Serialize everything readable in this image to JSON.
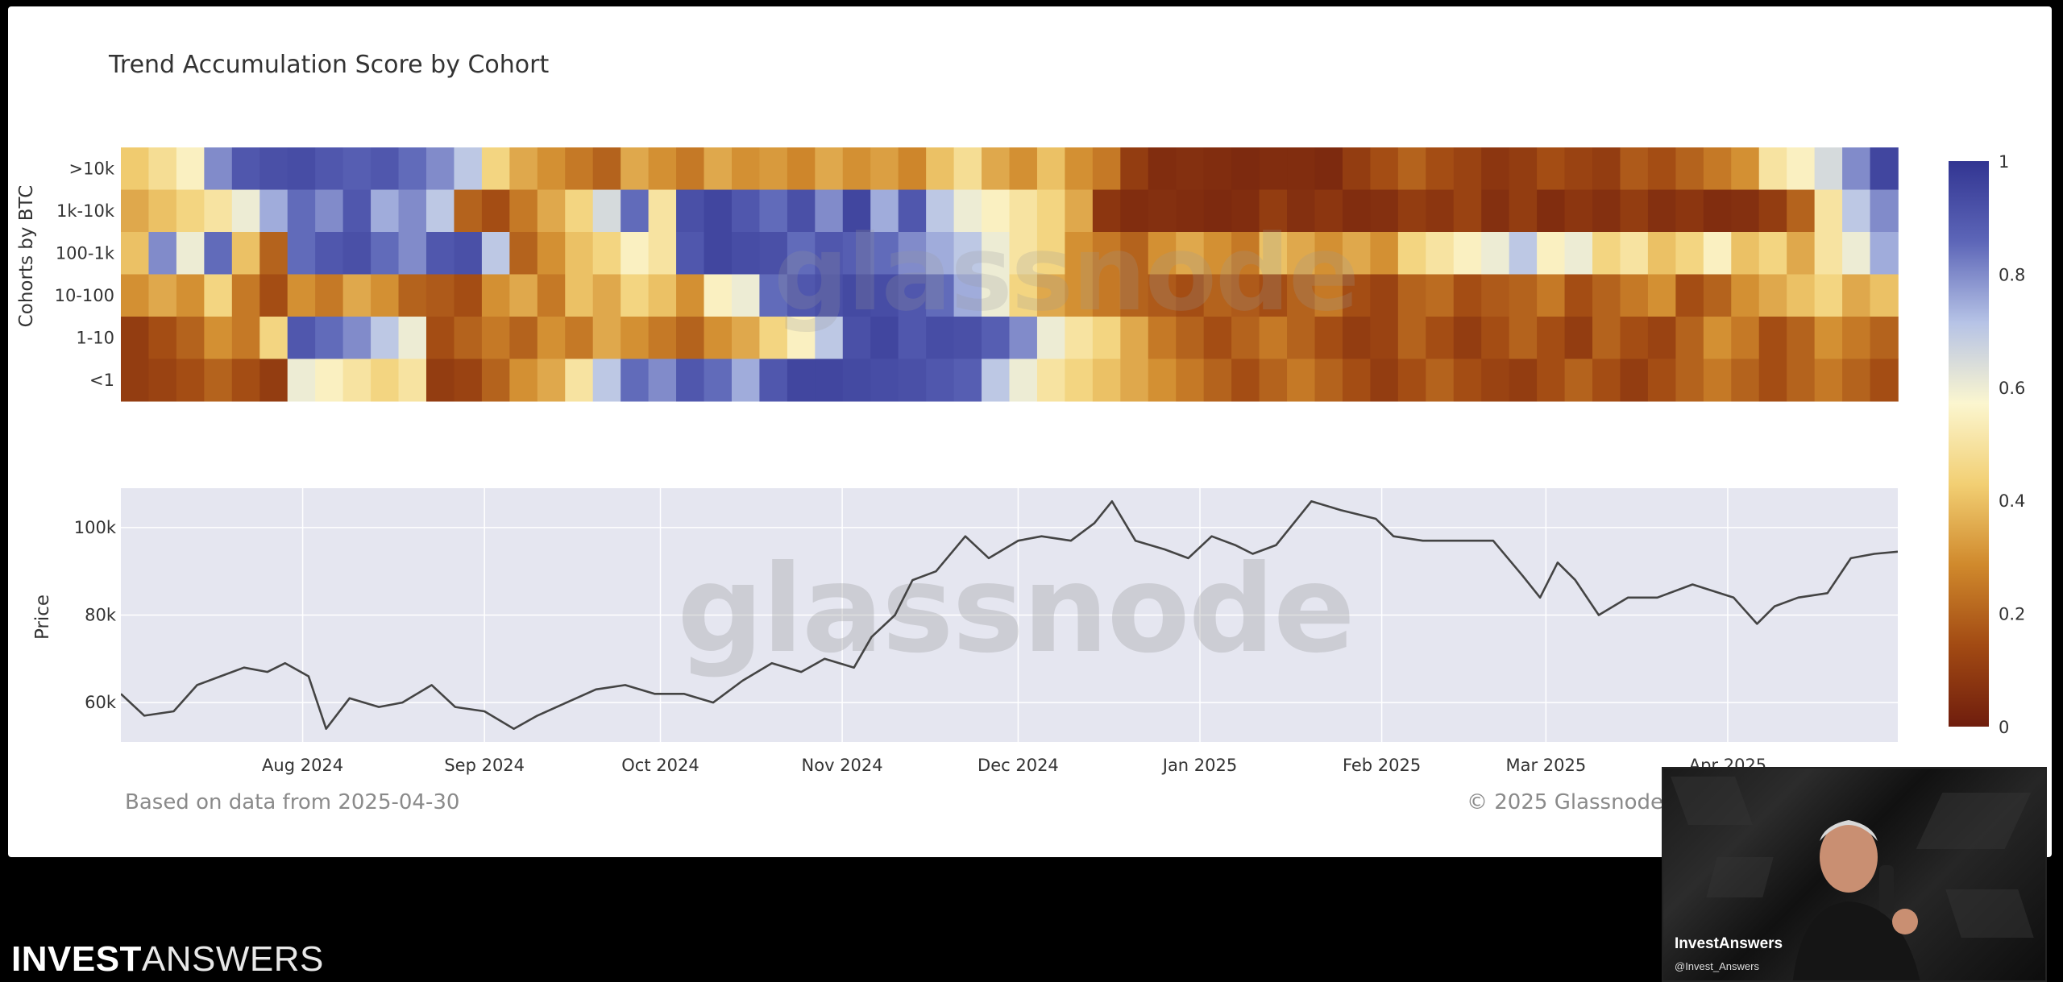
{
  "chart_data": [
    {
      "type": "heatmap",
      "title": "Trend Accumulation Score by Cohort",
      "ylabel": "Cohorts by BTC",
      "rows": [
        ">10k",
        "1k-10k",
        "100-1k",
        "10-100",
        "1-10",
        "<1"
      ],
      "x_range": [
        "2024-07-01",
        "2025-04-30"
      ],
      "colorbar": {
        "min": 0,
        "max": 1,
        "ticks": [
          0,
          0.2,
          0.4,
          0.6,
          0.8,
          1
        ],
        "colors": [
          "#6f1d0d",
          "#a24a13",
          "#d0892c",
          "#f2cf73",
          "#fbf6cf",
          "#b6c3e6",
          "#5d66b8",
          "#323592"
        ]
      },
      "values": [
        [
          0.42,
          0.48,
          0.55,
          0.8,
          0.9,
          0.92,
          0.93,
          0.9,
          0.88,
          0.9,
          0.85,
          0.8,
          0.7,
          0.45,
          0.35,
          0.3,
          0.25,
          0.2,
          0.35,
          0.3,
          0.25,
          0.35,
          0.3,
          0.32,
          0.28,
          0.35,
          0.3,
          0.33,
          0.28,
          0.4,
          0.48,
          0.35,
          0.3,
          0.4,
          0.3,
          0.25,
          0.1,
          0.05,
          0.06,
          0.05,
          0.04,
          0.05,
          0.05,
          0.04,
          0.1,
          0.15,
          0.2,
          0.15,
          0.12,
          0.08,
          0.1,
          0.15,
          0.12,
          0.1,
          0.18,
          0.15,
          0.2,
          0.25,
          0.3,
          0.5,
          0.55,
          0.65,
          0.8,
          0.95
        ],
        [
          0.35,
          0.4,
          0.45,
          0.5,
          0.6,
          0.75,
          0.85,
          0.8,
          0.9,
          0.75,
          0.8,
          0.7,
          0.2,
          0.15,
          0.25,
          0.35,
          0.45,
          0.65,
          0.85,
          0.5,
          0.92,
          0.95,
          0.9,
          0.85,
          0.92,
          0.8,
          0.95,
          0.75,
          0.9,
          0.7,
          0.6,
          0.55,
          0.5,
          0.45,
          0.35,
          0.08,
          0.05,
          0.06,
          0.05,
          0.04,
          0.05,
          0.1,
          0.06,
          0.08,
          0.05,
          0.06,
          0.1,
          0.08,
          0.12,
          0.06,
          0.1,
          0.05,
          0.08,
          0.06,
          0.1,
          0.06,
          0.08,
          0.05,
          0.06,
          0.1,
          0.2,
          0.5,
          0.7,
          0.8
        ],
        [
          0.4,
          0.8,
          0.6,
          0.85,
          0.4,
          0.2,
          0.85,
          0.9,
          0.92,
          0.85,
          0.8,
          0.9,
          0.92,
          0.7,
          0.2,
          0.3,
          0.4,
          0.45,
          0.55,
          0.5,
          0.9,
          0.95,
          0.93,
          0.92,
          0.85,
          0.9,
          0.88,
          0.85,
          0.8,
          0.75,
          0.7,
          0.6,
          0.5,
          0.45,
          0.3,
          0.25,
          0.2,
          0.3,
          0.35,
          0.3,
          0.25,
          0.4,
          0.35,
          0.3,
          0.35,
          0.3,
          0.45,
          0.5,
          0.55,
          0.6,
          0.7,
          0.55,
          0.6,
          0.45,
          0.5,
          0.4,
          0.45,
          0.55,
          0.4,
          0.45,
          0.35,
          0.5,
          0.6,
          0.75
        ],
        [
          0.3,
          0.35,
          0.3,
          0.45,
          0.25,
          0.15,
          0.3,
          0.25,
          0.35,
          0.3,
          0.2,
          0.18,
          0.15,
          0.3,
          0.35,
          0.25,
          0.4,
          0.35,
          0.45,
          0.4,
          0.3,
          0.55,
          0.6,
          0.85,
          0.9,
          0.92,
          0.94,
          0.93,
          0.9,
          0.85,
          0.75,
          0.6,
          0.45,
          0.35,
          0.3,
          0.25,
          0.2,
          0.18,
          0.15,
          0.2,
          0.18,
          0.15,
          0.2,
          0.25,
          0.15,
          0.12,
          0.2,
          0.22,
          0.15,
          0.18,
          0.2,
          0.25,
          0.15,
          0.2,
          0.25,
          0.3,
          0.15,
          0.2,
          0.3,
          0.35,
          0.4,
          0.45,
          0.35,
          0.4
        ],
        [
          0.1,
          0.15,
          0.2,
          0.3,
          0.25,
          0.45,
          0.9,
          0.85,
          0.8,
          0.7,
          0.6,
          0.15,
          0.2,
          0.25,
          0.2,
          0.3,
          0.25,
          0.35,
          0.3,
          0.25,
          0.2,
          0.3,
          0.35,
          0.45,
          0.55,
          0.7,
          0.92,
          0.95,
          0.9,
          0.93,
          0.92,
          0.88,
          0.8,
          0.6,
          0.5,
          0.45,
          0.35,
          0.25,
          0.2,
          0.15,
          0.2,
          0.25,
          0.2,
          0.15,
          0.1,
          0.12,
          0.2,
          0.15,
          0.1,
          0.15,
          0.2,
          0.15,
          0.1,
          0.2,
          0.15,
          0.12,
          0.2,
          0.3,
          0.25,
          0.15,
          0.2,
          0.3,
          0.25,
          0.2
        ],
        [
          0.1,
          0.12,
          0.15,
          0.2,
          0.15,
          0.1,
          0.6,
          0.55,
          0.5,
          0.45,
          0.5,
          0.1,
          0.12,
          0.2,
          0.3,
          0.35,
          0.5,
          0.7,
          0.85,
          0.8,
          0.9,
          0.85,
          0.75,
          0.9,
          0.95,
          0.95,
          0.94,
          0.93,
          0.92,
          0.9,
          0.88,
          0.7,
          0.6,
          0.5,
          0.45,
          0.4,
          0.35,
          0.3,
          0.25,
          0.2,
          0.15,
          0.2,
          0.25,
          0.2,
          0.15,
          0.1,
          0.15,
          0.2,
          0.15,
          0.12,
          0.1,
          0.15,
          0.2,
          0.15,
          0.1,
          0.15,
          0.2,
          0.25,
          0.2,
          0.15,
          0.2,
          0.25,
          0.2,
          0.15
        ]
      ]
    },
    {
      "type": "line",
      "ylabel": "Price",
      "x_ticks": [
        "Aug 2024",
        "Sep 2024",
        "Oct 2024",
        "Nov 2024",
        "Dec 2024",
        "Jan 2025",
        "Feb 2025",
        "Mar 2025",
        "Apr 2025"
      ],
      "x_tick_dates": [
        "2024-08-01",
        "2024-09-01",
        "2024-10-01",
        "2024-11-01",
        "2024-12-01",
        "2025-01-01",
        "2025-02-01",
        "2025-03-01",
        "2025-04-01"
      ],
      "y_ticks": [
        {
          "label": "60k",
          "value": 60000
        },
        {
          "label": "80k",
          "value": 80000
        },
        {
          "label": "100k",
          "value": 100000
        }
      ],
      "ylim": [
        51000,
        109000
      ],
      "x_range": [
        "2024-07-01",
        "2025-04-30"
      ],
      "series": [
        {
          "x": [
            "2024-07-01",
            "2024-07-05",
            "2024-07-10",
            "2024-07-14",
            "2024-07-18",
            "2024-07-22",
            "2024-07-26",
            "2024-07-29",
            "2024-08-02",
            "2024-08-05",
            "2024-08-09",
            "2024-08-14",
            "2024-08-18",
            "2024-08-23",
            "2024-08-27",
            "2024-09-01",
            "2024-09-06",
            "2024-09-10",
            "2024-09-15",
            "2024-09-20",
            "2024-09-25",
            "2024-09-30",
            "2024-10-05",
            "2024-10-10",
            "2024-10-15",
            "2024-10-20",
            "2024-10-25",
            "2024-10-29",
            "2024-11-03",
            "2024-11-06",
            "2024-11-10",
            "2024-11-13",
            "2024-11-17",
            "2024-11-22",
            "2024-11-26",
            "2024-12-01",
            "2024-12-05",
            "2024-12-10",
            "2024-12-14",
            "2024-12-17",
            "2024-12-21",
            "2024-12-26",
            "2024-12-30",
            "2025-01-03",
            "2025-01-07",
            "2025-01-10",
            "2025-01-14",
            "2025-01-20",
            "2025-01-25",
            "2025-01-31",
            "2025-02-03",
            "2025-02-08",
            "2025-02-14",
            "2025-02-20",
            "2025-02-25",
            "2025-02-28",
            "2025-03-03",
            "2025-03-06",
            "2025-03-10",
            "2025-03-15",
            "2025-03-20",
            "2025-03-26",
            "2025-04-02",
            "2025-04-06",
            "2025-04-09",
            "2025-04-13",
            "2025-04-18",
            "2025-04-22",
            "2025-04-26",
            "2025-04-30"
          ],
          "y": [
            62000,
            57000,
            58000,
            64000,
            66000,
            68000,
            67000,
            69000,
            66000,
            54000,
            61000,
            59000,
            60000,
            64000,
            59000,
            58000,
            54000,
            57000,
            60000,
            63000,
            64000,
            62000,
            62000,
            60000,
            65000,
            69000,
            67000,
            70000,
            68000,
            75000,
            80000,
            88000,
            90000,
            98000,
            93000,
            97000,
            98000,
            97000,
            101000,
            106000,
            97000,
            95000,
            93000,
            98000,
            96000,
            94000,
            96000,
            106000,
            104000,
            102000,
            98000,
            97000,
            97000,
            97000,
            89000,
            84000,
            92000,
            88000,
            80000,
            84000,
            84000,
            87000,
            84000,
            78000,
            82000,
            84000,
            85000,
            93000,
            94000,
            94500
          ]
        }
      ]
    }
  ],
  "footer": {
    "left": "Based on data from 2025-04-30",
    "right": "© 2025 Glassnode"
  },
  "watermark": "glassnode",
  "brand": {
    "part1": "INVEST",
    "part2": "ANSWERS"
  },
  "webcam": {
    "name": "InvestAnswers",
    "handle": "@Invest_Answers"
  }
}
